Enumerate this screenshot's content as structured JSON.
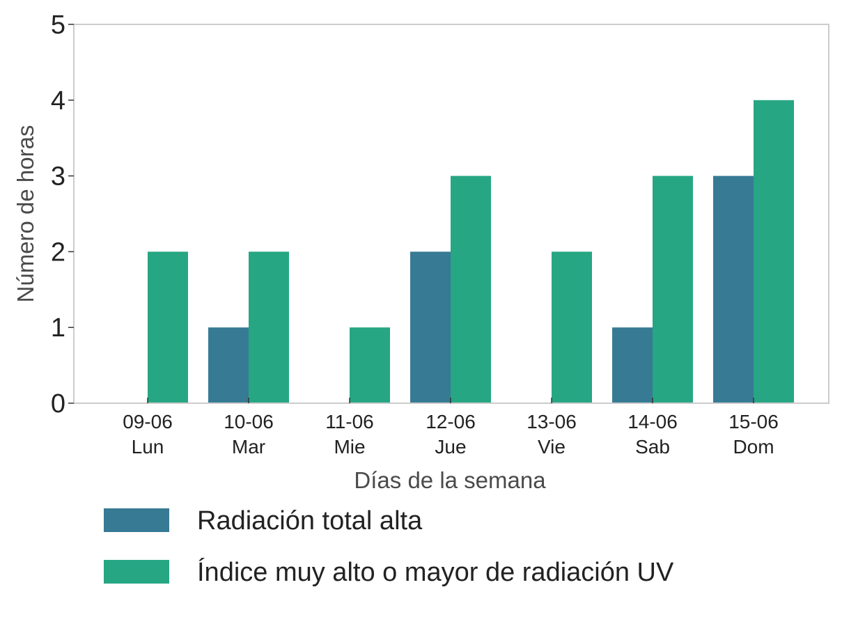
{
  "chart_data": {
    "type": "bar",
    "title": "",
    "xlabel": "Días de la semana",
    "ylabel": "Número de horas",
    "ylim": [
      0,
      5
    ],
    "yticks": [
      0,
      1,
      2,
      3,
      4,
      5
    ],
    "grid": false,
    "legend_position": "bottom",
    "categories": [
      {
        "date": "09-06",
        "day": "Lun"
      },
      {
        "date": "10-06",
        "day": "Mar"
      },
      {
        "date": "11-06",
        "day": "Mie"
      },
      {
        "date": "12-06",
        "day": "Jue"
      },
      {
        "date": "13-06",
        "day": "Vie"
      },
      {
        "date": "14-06",
        "day": "Sab"
      },
      {
        "date": "15-06",
        "day": "Dom"
      }
    ],
    "series": [
      {
        "name": "Radiación total alta",
        "color": "#377a94",
        "values": [
          0,
          1,
          0,
          2,
          0,
          1,
          3
        ]
      },
      {
        "name": "Índice muy alto o mayor de radiación UV",
        "color": "#27a684",
        "values": [
          2,
          2,
          1,
          3,
          2,
          3,
          4
        ]
      }
    ]
  }
}
